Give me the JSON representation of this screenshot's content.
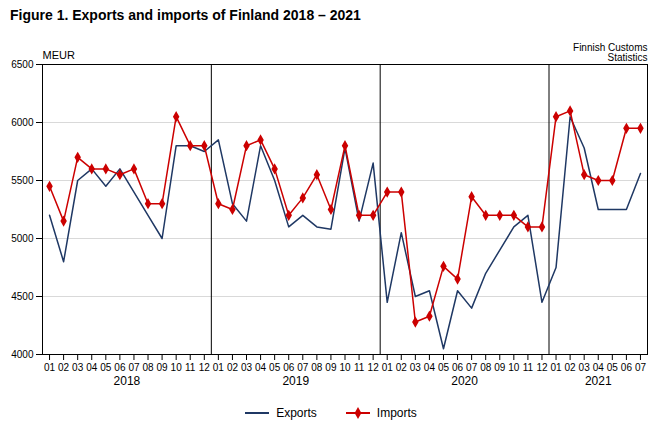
{
  "chart_data": {
    "type": "line",
    "title": "Figure 1. Exports and imports of Finland 2018 – 2021",
    "ylabel": "MEUR",
    "annotations": [
      "Finnish Customs",
      "Statistics"
    ],
    "categories": [
      "01",
      "02",
      "03",
      "04",
      "05",
      "06",
      "07",
      "08",
      "09",
      "10",
      "11",
      "12",
      "01",
      "02",
      "03",
      "04",
      "05",
      "06",
      "07",
      "08",
      "09",
      "10",
      "11",
      "12",
      "01",
      "02",
      "03",
      "04",
      "05",
      "06",
      "07",
      "08",
      "09",
      "10",
      "11",
      "12",
      "01",
      "02",
      "03",
      "04",
      "05",
      "06",
      "07"
    ],
    "year_labels": [
      "2018",
      "2019",
      "2020",
      "2021"
    ],
    "year_separators": [
      12,
      24,
      36
    ],
    "series": [
      {
        "name": "Exports",
        "color": "#1F3864",
        "marker": "none",
        "values": [
          5200,
          4800,
          5500,
          5600,
          5450,
          5600,
          5400,
          5200,
          5000,
          5800,
          5800,
          5750,
          5850,
          5300,
          5150,
          5800,
          5500,
          5100,
          5200,
          5100,
          5080,
          5780,
          5150,
          5650,
          4450,
          5050,
          4500,
          4550,
          4050,
          4550,
          4400,
          4700,
          4900,
          5100,
          5200,
          4450,
          4750,
          6050,
          5780,
          5250,
          5250,
          5250,
          5560
        ]
      },
      {
        "name": "Imports",
        "color": "#CC0000",
        "marker": "diamond",
        "values": [
          5450,
          5150,
          5700,
          5600,
          5600,
          5550,
          5600,
          5300,
          5300,
          6050,
          5800,
          5800,
          5300,
          5250,
          5800,
          5850,
          5600,
          5200,
          5350,
          5550,
          5250,
          5800,
          5200,
          5200,
          5400,
          5400,
          4280,
          4330,
          4760,
          4650,
          5360,
          5200,
          5200,
          5200,
          5100,
          5100,
          6050,
          6100,
          5550,
          5500,
          5500,
          5950,
          5950
        ]
      }
    ],
    "ylim": [
      4000,
      6500
    ],
    "yticks": [
      4000,
      4500,
      5000,
      5500,
      6000,
      6500
    ],
    "grid": true,
    "legend": "bottom"
  }
}
